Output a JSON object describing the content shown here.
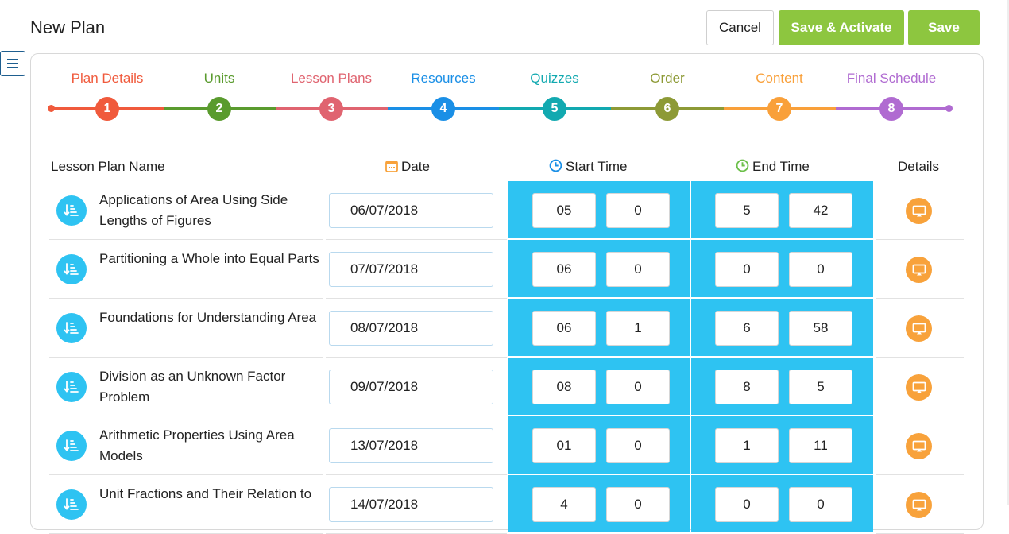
{
  "header": {
    "title": "New Plan",
    "cancel_label": "Cancel",
    "activate_label": "Save & Activate",
    "save_label": "Save"
  },
  "stepper": {
    "steps": [
      {
        "label": "Plan Details",
        "number": "1",
        "color": "#f05a3c"
      },
      {
        "label": "Units",
        "number": "2",
        "color": "#5a9b2e"
      },
      {
        "label": "Lesson Plans",
        "number": "3",
        "color": "#e06470"
      },
      {
        "label": "Resources",
        "number": "4",
        "color": "#1a8fe6"
      },
      {
        "label": "Quizzes",
        "number": "5",
        "color": "#12a9b0"
      },
      {
        "label": "Order",
        "number": "6",
        "color": "#8d9a36"
      },
      {
        "label": "Content",
        "number": "7",
        "color": "#f9a03a"
      },
      {
        "label": "Final Schedule",
        "number": "8",
        "color": "#b06bd1"
      }
    ]
  },
  "table": {
    "headers": {
      "name": "Lesson Plan Name",
      "date": "Date",
      "start": "Start Time",
      "end": "End Time",
      "details": "Details"
    },
    "rows": [
      {
        "name": "Applications of Area Using Side Lengths of Figures",
        "date": "06/07/2018",
        "start_h": "05",
        "start_m": "0",
        "end_h": "5",
        "end_m": "42"
      },
      {
        "name": "Partitioning a Whole into Equal Parts",
        "date": "07/07/2018",
        "start_h": "06",
        "start_m": "0",
        "end_h": "0",
        "end_m": "0"
      },
      {
        "name": "Foundations for Understanding Area",
        "date": "08/07/2018",
        "start_h": "06",
        "start_m": "1",
        "end_h": "6",
        "end_m": "58"
      },
      {
        "name": "Division as an Unknown Factor Problem",
        "date": "09/07/2018",
        "start_h": "08",
        "start_m": "0",
        "end_h": "8",
        "end_m": "5"
      },
      {
        "name": "Arithmetic Properties Using Area Models",
        "date": "13/07/2018",
        "start_h": "01",
        "start_m": "0",
        "end_h": "1",
        "end_m": "11"
      },
      {
        "name": "Unit Fractions and Their Relation to",
        "date": "14/07/2018",
        "start_h": "4",
        "start_m": "0",
        "end_h": "0",
        "end_m": "0"
      }
    ]
  },
  "colors": {
    "accent_green": "#8dc63f",
    "time_block_blue": "#2ec3f2",
    "details_orange": "#f8a23b"
  }
}
